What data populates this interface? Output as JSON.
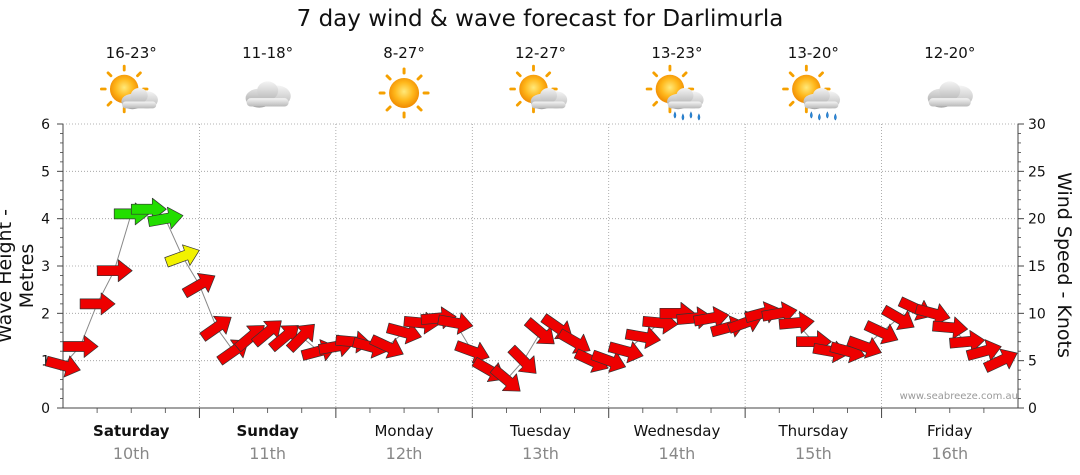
{
  "header": {
    "title": "7 day wind & wave forecast for Darlimurla"
  },
  "days": [
    {
      "name": "Saturday",
      "date": "10th",
      "temp": "16-23°",
      "icon": "sun-cloud-icon",
      "bold": true
    },
    {
      "name": "Sunday",
      "date": "11th",
      "temp": "11-18°",
      "icon": "cloud-icon",
      "bold": true
    },
    {
      "name": "Monday",
      "date": "12th",
      "temp": "8-27°",
      "icon": "sun-icon",
      "bold": false
    },
    {
      "name": "Tuesday",
      "date": "13th",
      "temp": "12-27°",
      "icon": "sun-cloud-icon",
      "bold": false
    },
    {
      "name": "Wednesday",
      "date": "14th",
      "temp": "13-23°",
      "icon": "sun-cloud-rain-icon",
      "bold": false
    },
    {
      "name": "Thursday",
      "date": "15th",
      "temp": "13-20°",
      "icon": "sun-cloud-rain-icon",
      "bold": false
    },
    {
      "name": "Friday",
      "date": "16th",
      "temp": "12-20°",
      "icon": "cloud-icon",
      "bold": false
    }
  ],
  "watermark": "www.seabreeze.com.au",
  "colors": {
    "calm": "#ee0000",
    "moderate": "#f2f200",
    "strong": "#22dd00",
    "arrow_stroke": "#333333",
    "grid": "#9a9a9a",
    "wave_line": "#888888"
  },
  "chart_data": {
    "type": "line",
    "title": "7 day wind & wave forecast for Darlimurla",
    "ylabel_left": "Wave Height - Metres",
    "ylabel_right": "Wind Speed - Knots",
    "ylim_left": [
      0,
      6
    ],
    "ylim_right": [
      0,
      30
    ],
    "yticks_left": [
      "0",
      "1",
      "2",
      "3",
      "4",
      "5",
      "6"
    ],
    "yticks_right": [
      "0",
      "5",
      "10",
      "15",
      "20",
      "25",
      "30"
    ],
    "grid": true,
    "x_unit": "hours from start of Saturday",
    "series": [
      {
        "name": "wind",
        "hours": [
          0,
          3,
          6,
          9,
          12,
          15,
          18,
          21,
          24,
          27,
          30,
          33,
          36,
          39,
          42,
          45,
          48,
          51,
          54,
          57,
          60,
          63,
          66,
          69,
          72,
          75,
          78,
          81,
          84,
          87,
          90,
          93,
          96,
          99,
          102,
          105,
          108,
          111,
          114,
          117,
          120,
          123,
          126,
          129,
          132,
          135,
          138,
          141,
          144,
          147,
          150,
          153,
          156,
          159,
          162,
          165
        ],
        "knots": [
          4.5,
          6.5,
          11,
          14.5,
          20.5,
          21,
          20,
          16,
          13,
          8.5,
          6,
          7.5,
          8,
          7.5,
          7.5,
          6,
          6.5,
          7,
          6.5,
          6.5,
          8,
          9,
          9.5,
          9,
          6,
          4,
          3,
          5,
          8,
          8.5,
          7,
          5,
          5,
          6,
          7.5,
          9,
          10,
          9.5,
          9.5,
          8.5,
          9,
          10,
          10,
          9,
          7,
          6,
          6,
          6.5,
          8,
          9.5,
          10.5,
          10,
          8.5,
          7,
          6,
          5
        ],
        "dir_deg": [
          15,
          0,
          0,
          0,
          0,
          0,
          -10,
          -20,
          -30,
          -35,
          -35,
          -40,
          -40,
          -40,
          -45,
          -15,
          -10,
          5,
          15,
          25,
          15,
          5,
          -5,
          10,
          20,
          30,
          40,
          45,
          40,
          35,
          30,
          25,
          20,
          15,
          10,
          5,
          0,
          -5,
          -10,
          -15,
          -20,
          -15,
          -10,
          -5,
          0,
          10,
          15,
          20,
          25,
          30,
          25,
          15,
          5,
          -5,
          -15,
          -25
        ]
      }
    ]
  }
}
